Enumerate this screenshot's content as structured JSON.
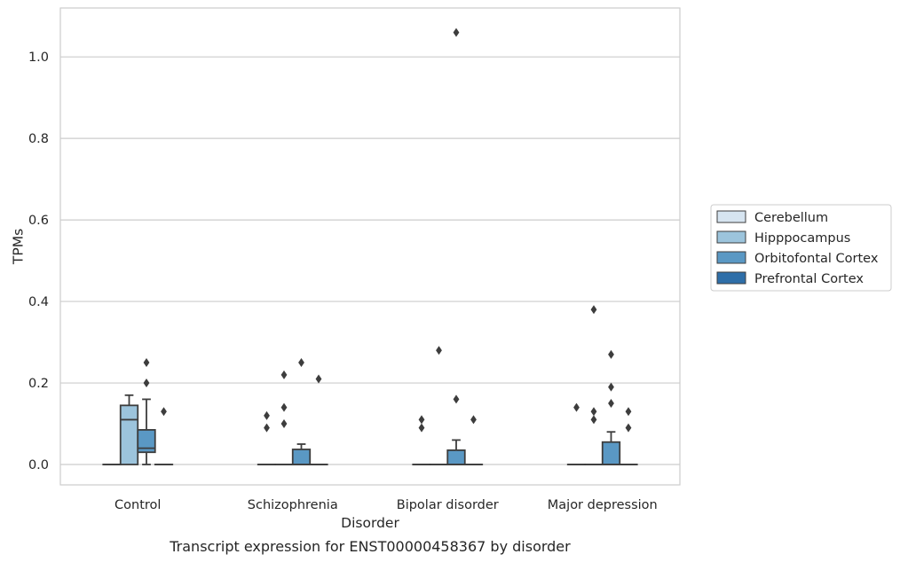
{
  "chart_data": {
    "type": "boxplot",
    "caption": "Transcript expression for ENST00000458367 by disorder",
    "xlabel": "Disorder",
    "ylabel": "TPMs",
    "ylim": [
      -0.05,
      1.12
    ],
    "yticks": [
      0.0,
      0.2,
      0.4,
      0.6,
      0.8,
      1.0
    ],
    "ytick_labels": [
      "0.0",
      "0.2",
      "0.4",
      "0.6",
      "0.8",
      "1.0"
    ],
    "grid": "horizontal",
    "legend_position": "right",
    "categories": [
      "Control",
      "Schizophrenia",
      "Bipolar disorder",
      "Major depression"
    ],
    "series": [
      {
        "name": "Cerebellum",
        "color": "#d6e4f0",
        "boxes": [
          {
            "q1": 0,
            "median": 0,
            "q3": 0,
            "whisker_low": 0,
            "whisker_high": 0,
            "outliers": []
          },
          {
            "q1": 0,
            "median": 0,
            "q3": 0,
            "whisker_low": 0,
            "whisker_high": 0,
            "outliers": [
              0.12,
              0.09
            ]
          },
          {
            "q1": 0,
            "median": 0,
            "q3": 0,
            "whisker_low": 0,
            "whisker_high": 0,
            "outliers": [
              0.11,
              0.09
            ]
          },
          {
            "q1": 0,
            "median": 0,
            "q3": 0,
            "whisker_low": 0,
            "whisker_high": 0,
            "outliers": [
              0.14
            ]
          }
        ]
      },
      {
        "name": "Hipppocampus",
        "color": "#9cc4dc",
        "boxes": [
          {
            "q1": 0,
            "median": 0.11,
            "q3": 0.145,
            "whisker_low": 0,
            "whisker_high": 0.17,
            "outliers": []
          },
          {
            "q1": 0,
            "median": 0,
            "q3": 0,
            "whisker_low": 0,
            "whisker_high": 0,
            "outliers": [
              0.22,
              0.14,
              0.1
            ]
          },
          {
            "q1": 0,
            "median": 0,
            "q3": 0,
            "whisker_low": 0,
            "whisker_high": 0,
            "outliers": [
              0.28
            ]
          },
          {
            "q1": 0,
            "median": 0,
            "q3": 0,
            "whisker_low": 0,
            "whisker_high": 0,
            "outliers": [
              0.38,
              0.13,
              0.11
            ]
          }
        ]
      },
      {
        "name": "Orbitofontal Cortex",
        "color": "#5a98c4",
        "boxes": [
          {
            "q1": 0.03,
            "median": 0.04,
            "q3": 0.085,
            "whisker_low": 0,
            "whisker_high": 0.16,
            "outliers": [
              0.25,
              0.2
            ]
          },
          {
            "q1": 0,
            "median": 0,
            "q3": 0.037,
            "whisker_low": 0,
            "whisker_high": 0.05,
            "outliers": [
              0.25
            ]
          },
          {
            "q1": 0,
            "median": 0,
            "q3": 0.035,
            "whisker_low": 0,
            "whisker_high": 0.06,
            "outliers": [
              1.06,
              0.16
            ]
          },
          {
            "q1": 0,
            "median": 0,
            "q3": 0.055,
            "whisker_low": 0,
            "whisker_high": 0.08,
            "outliers": [
              0.27,
              0.19,
              0.15
            ]
          }
        ]
      },
      {
        "name": "Prefrontal Cortex",
        "color": "#2e6ea8",
        "boxes": [
          {
            "q1": 0,
            "median": 0,
            "q3": 0,
            "whisker_low": 0,
            "whisker_high": 0,
            "outliers": [
              0.13
            ]
          },
          {
            "q1": 0,
            "median": 0,
            "q3": 0,
            "whisker_low": 0,
            "whisker_high": 0,
            "outliers": [
              0.21
            ]
          },
          {
            "q1": 0,
            "median": 0,
            "q3": 0,
            "whisker_low": 0,
            "whisker_high": 0,
            "outliers": [
              0.11
            ]
          },
          {
            "q1": 0,
            "median": 0,
            "q3": 0,
            "whisker_low": 0,
            "whisker_high": 0,
            "outliers": [
              0.13,
              0.09
            ]
          }
        ]
      }
    ]
  }
}
